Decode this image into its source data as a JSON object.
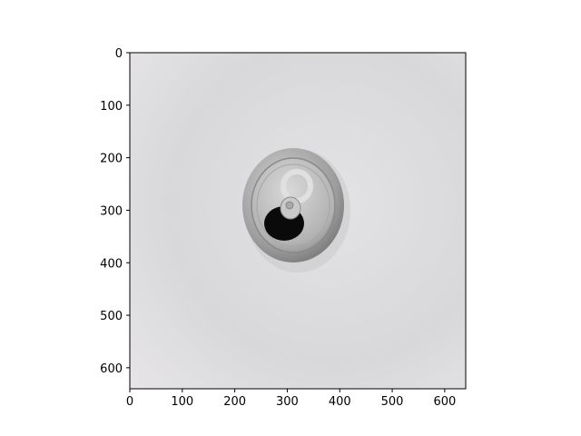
{
  "image": {
    "subject": "aluminum-can-top-view",
    "background_color": "#dcdcde",
    "can_rim_color": "#9a9a9a",
    "can_lid_color": "#b9b9b9",
    "opening_color": "#0a0a0a",
    "tab_color": "#c4c4c4"
  },
  "axes": {
    "x_ticks": [
      "0",
      "100",
      "200",
      "300",
      "400",
      "500",
      "600"
    ],
    "y_ticks": [
      "0",
      "100",
      "200",
      "300",
      "400",
      "500",
      "600"
    ],
    "xlim": [
      0,
      640
    ],
    "ylim": [
      640,
      0
    ]
  }
}
